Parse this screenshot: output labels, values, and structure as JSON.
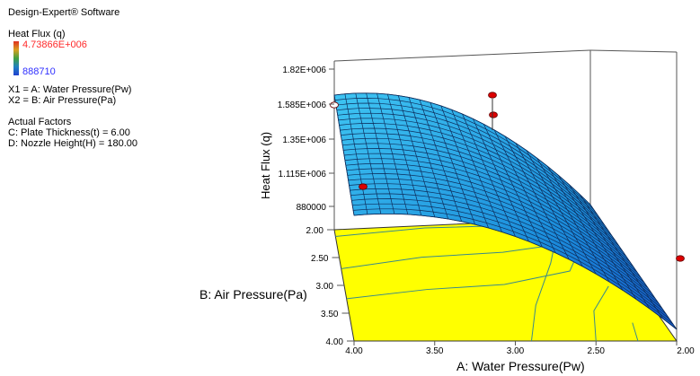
{
  "panel": {
    "software": "Design-Expert® Software",
    "response_title": "Heat Flux (q)",
    "response_max": "4.73866E+006",
    "response_min": "888710",
    "x1_def": "X1 = A: Water Pressure(Pw)",
    "x2_def": "X2 = B: Air Pressure(Pa)",
    "actual_factors_title": "Actual Factors",
    "factor_c": "C: Plate Thickness(t) = 6.00",
    "factor_d": "D: Nozzle Height(H) = 180.00"
  },
  "chart_data": {
    "type": "surface",
    "z_label": "Heat Flux (q)",
    "x_label": "A: Water Pressure(Pw)",
    "y_label": "B: Air Pressure(Pa)",
    "z_ticks": [
      "1.82E+006",
      "1.585E+006",
      "1.35E+006",
      "1.115E+006",
      "880000"
    ],
    "x_ticks": [
      "4.00",
      "3.50",
      "3.00",
      "2.50",
      "2.00"
    ],
    "y_ticks": [
      "2.00",
      "2.50",
      "3.00",
      "3.50",
      "4.00"
    ],
    "surface_color": "#29a8e6",
    "floor_color": "#ffff00",
    "point_color": "#dd0000"
  }
}
